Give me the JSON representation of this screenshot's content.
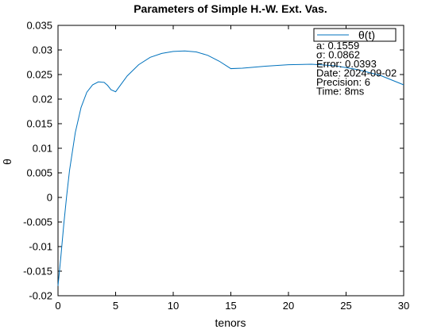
{
  "chart_data": {
    "type": "line",
    "title": "Parameters of Simple H.-W. Ext. Vas.",
    "xlabel": "tenors",
    "ylabel": "θ",
    "xlim": [
      0,
      30
    ],
    "ylim": [
      -0.02,
      0.035
    ],
    "xticks": [
      0,
      5,
      10,
      15,
      20,
      25,
      30
    ],
    "yticks": [
      -0.02,
      -0.015,
      -0.01,
      -0.005,
      0,
      0.005,
      0.01,
      0.015,
      0.02,
      0.025,
      0.03,
      0.035
    ],
    "xtick_labels": [
      "0",
      "5",
      "10",
      "15",
      "20",
      "25",
      "30"
    ],
    "ytick_labels": [
      "-0.02",
      "-0.015",
      "-0.01",
      "-0.005",
      "0",
      "0.005",
      "0.01",
      "0.015",
      "0.02",
      "0.025",
      "0.03",
      "0.035"
    ],
    "grid": false,
    "legend_position": "top-right",
    "legend_text": [
      "a: 0.1559",
      "σ: 0.0862",
      "Error: 0.0393",
      "Date: 2024-09-02",
      "Precision: 6",
      "Time: 8ms"
    ],
    "series": [
      {
        "name": "θ(t)",
        "color": "#0072BD",
        "x": [
          0,
          0.25,
          0.5,
          0.75,
          1,
          1.5,
          2,
          2.5,
          3,
          3.5,
          4,
          4.3,
          4.6,
          5,
          6,
          7,
          8,
          9,
          10,
          11,
          12,
          13,
          14,
          15,
          16,
          18,
          20,
          22,
          24,
          26,
          28,
          30
        ],
        "values": [
          -0.018,
          -0.012,
          -0.0055,
          0.0003,
          0.0055,
          0.0132,
          0.0183,
          0.0214,
          0.0229,
          0.0235,
          0.0234,
          0.0228,
          0.0219,
          0.0215,
          0.0247,
          0.027,
          0.0285,
          0.0293,
          0.0297,
          0.0298,
          0.0296,
          0.0289,
          0.0277,
          0.0262,
          0.0263,
          0.0267,
          0.027,
          0.0271,
          0.0268,
          0.026,
          0.0248,
          0.0229
        ]
      }
    ]
  }
}
